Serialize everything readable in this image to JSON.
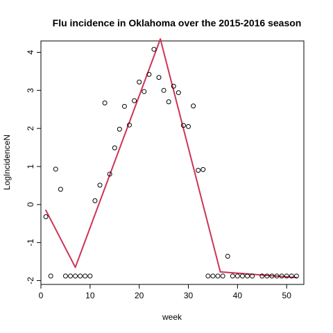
{
  "chart_data": {
    "type": "scatter",
    "title": "Flu incidence in Oklahoma over the 2015-2016 season",
    "xlabel": "week",
    "ylabel": "LogIncidenceN",
    "xlim": [
      0,
      53.5
    ],
    "ylim": [
      -2.1,
      4.3
    ],
    "x_ticks": [
      0,
      10,
      20,
      30,
      40,
      50
    ],
    "y_ticks": [
      -2,
      -1,
      0,
      1,
      2,
      3,
      4
    ],
    "grid": false,
    "legend": "none",
    "points": {
      "x": [
        1,
        2,
        3,
        4,
        5,
        6,
        7,
        8,
        9,
        10,
        11,
        12,
        13,
        14,
        15,
        16,
        17,
        18,
        19,
        20,
        21,
        22,
        23,
        24,
        25,
        26,
        27,
        28,
        29,
        30,
        31,
        32,
        33,
        34,
        35,
        36,
        37,
        38,
        39,
        40,
        41,
        42,
        43,
        45,
        46,
        47,
        48,
        49,
        50,
        51,
        52
      ],
      "y": [
        -0.32,
        -1.88,
        0.93,
        0.4,
        -1.88,
        -1.88,
        -1.88,
        -1.88,
        -1.88,
        -1.88,
        0.1,
        0.51,
        2.67,
        0.8,
        1.49,
        1.98,
        2.58,
        2.09,
        2.73,
        3.22,
        2.97,
        3.42,
        4.08,
        3.34,
        3.0,
        2.7,
        3.11,
        2.94,
        2.08,
        2.05,
        2.59,
        0.9,
        0.92,
        -1.88,
        -1.88,
        -1.88,
        -1.88,
        -1.36,
        -1.88,
        -1.88,
        -1.88,
        -1.88,
        -1.88,
        -1.88,
        -1.88,
        -1.88,
        -1.88,
        -1.88,
        -1.88,
        -1.88,
        -1.88
      ],
      "marker_color": "#000000"
    },
    "fit_line": {
      "x": [
        1,
        7,
        24.3,
        36.5,
        52
      ],
      "y": [
        -0.15,
        -1.65,
        4.35,
        -1.77,
        -1.92
      ],
      "color": "#cc3355"
    }
  }
}
